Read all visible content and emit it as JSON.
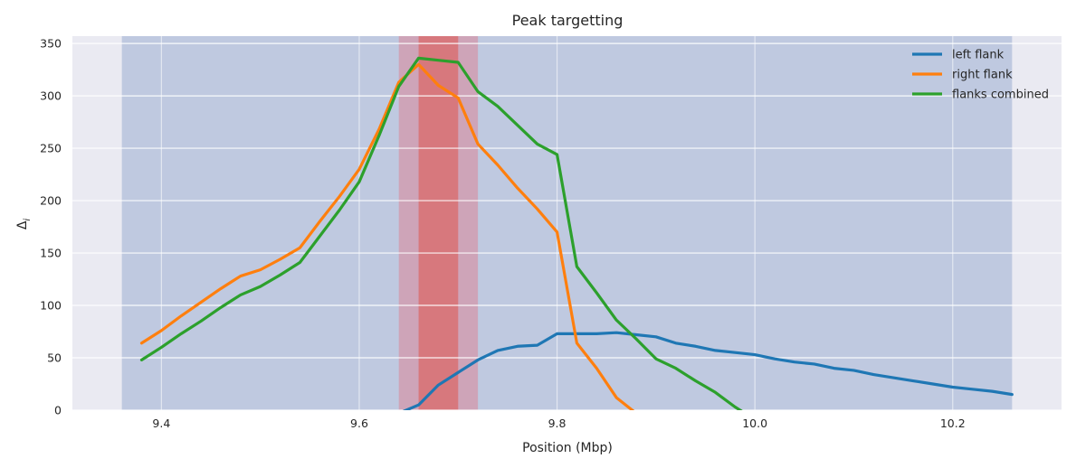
{
  "chart_data": {
    "type": "line",
    "title": "Peak targetting",
    "xlabel": "Position (Mbp)",
    "ylabel": "Δ",
    "ylabel_subscript": "i",
    "xlim": [
      9.31,
      10.31
    ],
    "ylim": [
      0,
      357
    ],
    "xticks": [
      9.4,
      9.6,
      9.8,
      10.0,
      10.2
    ],
    "xtick_labels": [
      "9.4",
      "9.6",
      "9.8",
      "10.0",
      "10.2"
    ],
    "yticks": [
      0,
      50,
      100,
      150,
      200,
      250,
      300,
      350
    ],
    "ytick_labels": [
      "0",
      "50",
      "100",
      "150",
      "200",
      "250",
      "300",
      "350"
    ],
    "grid": true,
    "legend_position": "top-right",
    "background_color": "#eaeaf2",
    "spans": [
      {
        "x0": 9.36,
        "x1": 10.26,
        "color": "#4c72b0",
        "opacity": 0.27
      },
      {
        "x0": 9.64,
        "x1": 9.72,
        "color": "#dd8090",
        "opacity": 0.5
      },
      {
        "x0": 9.66,
        "x1": 9.7,
        "color": "#d96a6a",
        "opacity": 0.75
      }
    ],
    "series": [
      {
        "name": "left flank",
        "color": "#1f77b4",
        "x": [
          9.64,
          9.66,
          9.68,
          9.7,
          9.72,
          9.74,
          9.76,
          9.78,
          9.8,
          9.82,
          9.84,
          9.86,
          9.88,
          9.9,
          9.92,
          9.94,
          9.96,
          9.98,
          10.0,
          10.02,
          10.04,
          10.06,
          10.08,
          10.1,
          10.12,
          10.14,
          10.16,
          10.18,
          10.2,
          10.22,
          10.24,
          10.26
        ],
        "y": [
          -3,
          5,
          24,
          36,
          48,
          57,
          61,
          62,
          73,
          73,
          73,
          74,
          72,
          70,
          64,
          61,
          57,
          55,
          53,
          49,
          46,
          44,
          40,
          38,
          34,
          31,
          28,
          25,
          22,
          20,
          18,
          15
        ]
      },
      {
        "name": "right flank",
        "color": "#ff7f0e",
        "x": [
          9.38,
          9.4,
          9.42,
          9.44,
          9.46,
          9.48,
          9.5,
          9.52,
          9.54,
          9.56,
          9.58,
          9.6,
          9.62,
          9.64,
          9.66,
          9.68,
          9.7,
          9.72,
          9.74,
          9.76,
          9.78,
          9.8,
          9.82,
          9.84,
          9.86,
          9.88
        ],
        "y": [
          64,
          76,
          90,
          103,
          116,
          128,
          134,
          144,
          155,
          180,
          204,
          230,
          268,
          313,
          330,
          310,
          298,
          254,
          234,
          212,
          192,
          170,
          64,
          40,
          12,
          -3
        ]
      },
      {
        "name": "flanks combined",
        "color": "#2ca02c",
        "x": [
          9.38,
          9.4,
          9.42,
          9.44,
          9.46,
          9.48,
          9.5,
          9.52,
          9.54,
          9.56,
          9.58,
          9.6,
          9.62,
          9.64,
          9.66,
          9.68,
          9.7,
          9.72,
          9.74,
          9.76,
          9.78,
          9.8,
          9.82,
          9.84,
          9.86,
          9.88,
          9.9,
          9.92,
          9.94,
          9.96,
          9.98,
          9.99
        ],
        "y": [
          48,
          60,
          73,
          85,
          98,
          110,
          118,
          129,
          141,
          166,
          191,
          218,
          262,
          309,
          336,
          334,
          332,
          304,
          290,
          272,
          254,
          244,
          137,
          112,
          86,
          68,
          49,
          40,
          28,
          17,
          3,
          -3
        ]
      }
    ]
  }
}
